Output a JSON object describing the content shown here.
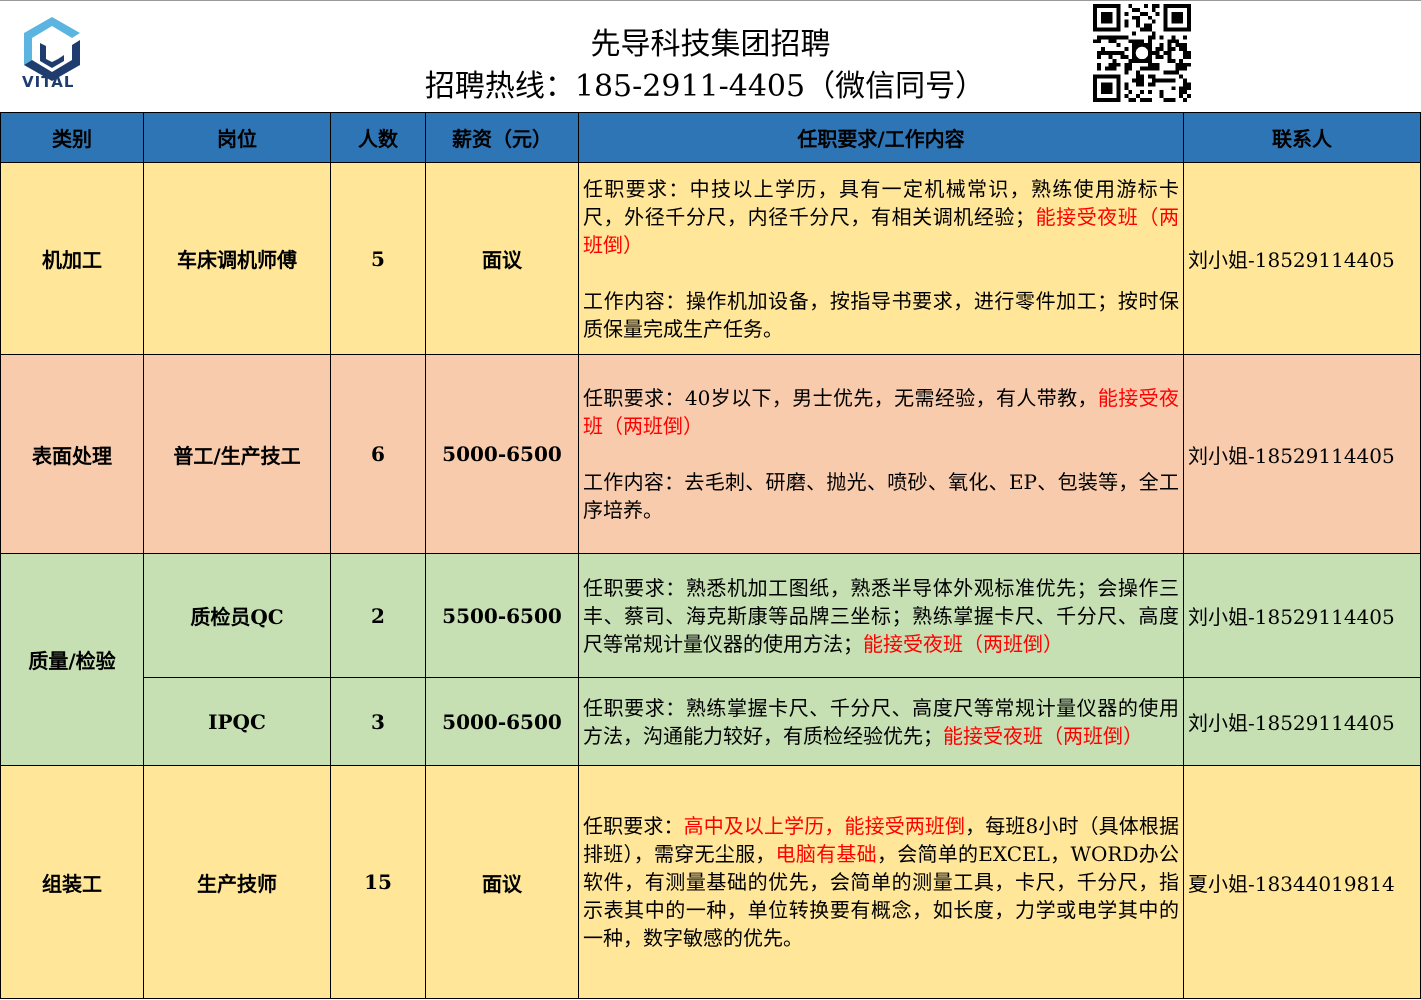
{
  "header": {
    "logo_text": "VITAL",
    "title": "先导科技集团招聘",
    "hotline": "招聘热线：185-2911-4405（微信同号）",
    "qr_icon": "wechat-qr-code"
  },
  "colors": {
    "header_bg": "#2E75B6",
    "yellow": "#FFE699",
    "salmon": "#F8CBAD",
    "green": "#C6E0B4",
    "highlight": "#FF0000"
  },
  "columns": [
    "类别",
    "岗位",
    "人数",
    "薪资（元）",
    "任职要求/工作内容",
    "联系人"
  ],
  "rows": [
    {
      "category": "机加工",
      "position": "车床调机师傅",
      "count": "5",
      "salary": "面议",
      "contact": "刘小姐-18529114405",
      "paras": [
        [
          {
            "t": "任职要求：中技以上学历，具有一定机械常识，熟练使用游标卡尺，外径千分尺，内径千分尺，有相关调机经验；",
            "r": false
          },
          {
            "t": "能接受夜班（两班倒）",
            "r": true
          }
        ],
        [
          {
            "t": "工作内容：操作机加设备，按指导书要求，进行零件加工；按时保质保量完成生产任务。",
            "r": false
          }
        ]
      ]
    },
    {
      "category": "表面处理",
      "position": "普工/生产技工",
      "count": "6",
      "salary": "5000-6500",
      "contact": "刘小姐-18529114405",
      "paras": [
        [
          {
            "t": "任职要求：40岁以下，男士优先，无需经验，有人带教，",
            "r": false
          },
          {
            "t": "能接受夜班（两班倒）",
            "r": true
          }
        ],
        [
          {
            "t": "工作内容：去毛刺、研磨、抛光、喷砂、氧化、EP、包装等，全工序培养。",
            "r": false
          }
        ]
      ]
    },
    {
      "category": "质量/检验",
      "position": "质检员QC",
      "count": "2",
      "salary": "5500-6500",
      "contact": "刘小姐-18529114405",
      "paras": [
        [
          {
            "t": "任职要求：熟悉机加工图纸，熟悉半导体外观标准优先；会操作三丰、蔡司、海克斯康等品牌三坐标；熟练掌握卡尺、千分尺、高度尺等常规计量仪器的使用方法；",
            "r": false
          },
          {
            "t": "能接受夜班（两班倒）",
            "r": true
          }
        ]
      ]
    },
    {
      "position": "IPQC",
      "count": "3",
      "salary": "5000-6500",
      "contact": "刘小姐-18529114405",
      "paras": [
        [
          {
            "t": "任职要求：熟练掌握卡尺、千分尺、高度尺等常规计量仪器的使用方法，沟通能力较好，有质检经验优先；",
            "r": false
          },
          {
            "t": "能接受夜班（两班倒）",
            "r": true
          }
        ]
      ]
    },
    {
      "category": "组装工",
      "position": "生产技师",
      "count": "15",
      "salary": "面议",
      "contact": "夏小姐-18344019814",
      "paras": [
        [
          {
            "t": "任职要求：",
            "r": false
          },
          {
            "t": "高中及以上学历，能接受两班倒",
            "r": true
          },
          {
            "t": "，每班8小时（具体根据排班），需穿无尘服，",
            "r": false
          },
          {
            "t": "电脑有基础",
            "r": true
          },
          {
            "t": "，会简单的EXCEL，WORD办公软件，有测量基础的优先，会简单的测量工具，卡尺，千分尺，指示表其中的一种，单位转换要有概念，如长度，力学或电学其中的一种，数字敏感的优先。",
            "r": false
          }
        ]
      ]
    }
  ]
}
